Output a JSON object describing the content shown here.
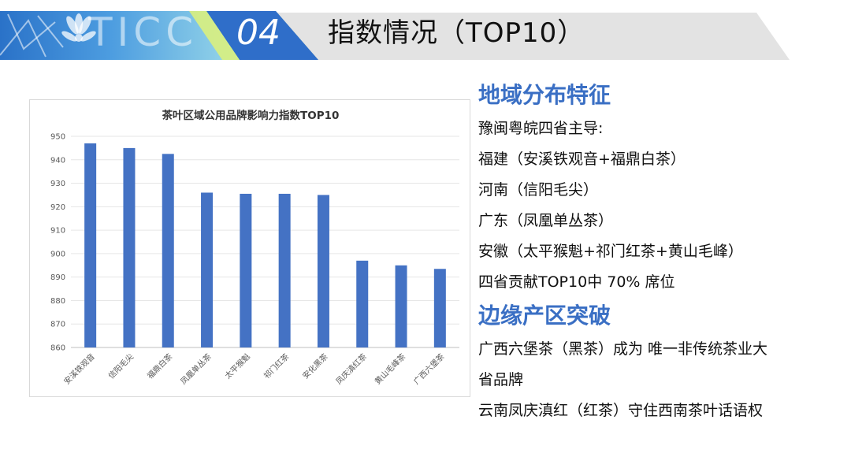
{
  "header": {
    "logo_text": "TICC",
    "section_number": "04",
    "title": "指数情况（TOP10）"
  },
  "colors": {
    "accent_blue": "#3a6fc4",
    "bar_blue": "#4472c4",
    "banner_grey": "#e3e3e3",
    "banner_blue": "#2f6ec9"
  },
  "chart_data": {
    "type": "bar",
    "title": "茶叶区域公用品牌影响力指数TOP10",
    "categories": [
      "安溪铁观音",
      "信阳毛尖",
      "福鼎白茶",
      "凤凰单丛茶",
      "太平猴魁",
      "祁门红茶",
      "安化黑茶",
      "凤庆滇红茶",
      "黄山毛峰茶",
      "广西六堡茶"
    ],
    "values": [
      947,
      945,
      942.5,
      926,
      925.5,
      925.5,
      925,
      897,
      895,
      893.5
    ],
    "ylim": [
      860,
      950
    ],
    "yticks": [
      860,
      870,
      880,
      890,
      900,
      910,
      920,
      930,
      940,
      950
    ],
    "grid": true,
    "xlabel": "",
    "ylabel": ""
  },
  "right": {
    "section1": {
      "title": "地域分布特征",
      "lines": [
        "豫闽粤皖四省主导:",
        "福建（安溪铁观音+福鼎白茶）",
        "河南（信阳毛尖）",
        "广东（凤凰单丛茶）",
        "安徽（太平猴魁+祁门红茶+黄山毛峰）",
        "四省贡献TOP10中 70% 席位"
      ]
    },
    "section2": {
      "title": "边缘产区突破",
      "lines": [
        "广西六堡茶（黑茶）成为 唯一非传统茶业大",
        "省品牌",
        "云南凤庆滇红（红茶）守住西南茶叶话语权"
      ]
    }
  }
}
